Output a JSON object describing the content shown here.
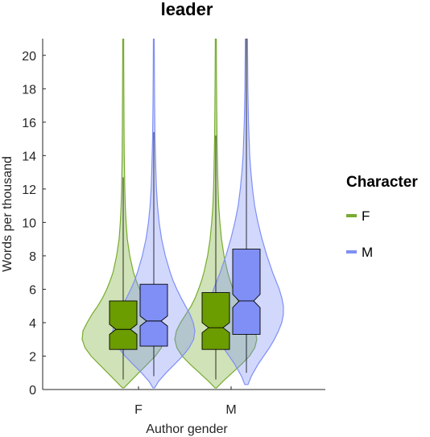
{
  "chart_data": {
    "type": "violin",
    "title": "leader",
    "xlabel": "Author gender",
    "ylabel": "Words per thousand",
    "categories": [
      "F",
      "M"
    ],
    "ylim": [
      0,
      21
    ],
    "yticks": [
      0,
      2,
      4,
      6,
      8,
      10,
      12,
      14,
      16,
      18,
      20
    ],
    "grid": false,
    "legend": {
      "title": "Character",
      "placement": "right",
      "entries": [
        {
          "label": "F",
          "color": "#77ac30"
        },
        {
          "label": "M",
          "color": "#7f8ff5"
        }
      ]
    },
    "series": [
      {
        "name": "F",
        "color": "#77ac30",
        "box_color": "#6b9c00",
        "groups": [
          {
            "category": "F",
            "q1": 2.4,
            "median": 3.6,
            "q3": 5.3,
            "notch_low": 3.3,
            "notch_high": 3.9,
            "whisker_low": 0.6,
            "whisker_high": 12.7,
            "violin": [
              [
                0.1,
                0.02
              ],
              [
                0.5,
                0.18
              ],
              [
                1.0,
                0.38
              ],
              [
                1.5,
                0.58
              ],
              [
                2.0,
                0.78
              ],
              [
                2.5,
                0.93
              ],
              [
                3.0,
                1.0
              ],
              [
                3.5,
                0.98
              ],
              [
                4.0,
                0.88
              ],
              [
                4.5,
                0.76
              ],
              [
                5.0,
                0.62
              ],
              [
                5.5,
                0.5
              ],
              [
                6.0,
                0.4
              ],
              [
                6.5,
                0.32
              ],
              [
                7.0,
                0.25
              ],
              [
                8.0,
                0.16
              ],
              [
                9.0,
                0.1
              ],
              [
                10.0,
                0.07
              ],
              [
                11.0,
                0.05
              ],
              [
                12.0,
                0.04
              ],
              [
                14.0,
                0.025
              ],
              [
                16.0,
                0.02
              ],
              [
                18.0,
                0.015
              ],
              [
                20.0,
                0.012
              ],
              [
                21.0,
                0.012
              ]
            ]
          },
          {
            "category": "M",
            "q1": 2.4,
            "median": 3.7,
            "q3": 5.8,
            "notch_low": 3.4,
            "notch_high": 4.0,
            "whisker_low": 0.6,
            "whisker_high": 15.2,
            "violin": [
              [
                0.1,
                0.02
              ],
              [
                0.5,
                0.18
              ],
              [
                1.0,
                0.4
              ],
              [
                1.5,
                0.62
              ],
              [
                2.0,
                0.82
              ],
              [
                2.5,
                0.95
              ],
              [
                3.0,
                1.0
              ],
              [
                3.5,
                0.96
              ],
              [
                4.0,
                0.86
              ],
              [
                4.5,
                0.73
              ],
              [
                5.0,
                0.6
              ],
              [
                5.5,
                0.5
              ],
              [
                6.0,
                0.42
              ],
              [
                6.5,
                0.35
              ],
              [
                7.0,
                0.29
              ],
              [
                8.0,
                0.2
              ],
              [
                9.0,
                0.14
              ],
              [
                10.0,
                0.1
              ],
              [
                11.0,
                0.07
              ],
              [
                12.0,
                0.055
              ],
              [
                13.0,
                0.045
              ],
              [
                15.0,
                0.03
              ],
              [
                17.0,
                0.022
              ],
              [
                19.0,
                0.016
              ],
              [
                21.0,
                0.012
              ]
            ]
          }
        ]
      },
      {
        "name": "M",
        "color": "#7f8ff5",
        "box_color": "#7f8ff5",
        "groups": [
          {
            "category": "F",
            "q1": 2.6,
            "median": 4.1,
            "q3": 6.3,
            "notch_low": 3.8,
            "notch_high": 4.4,
            "whisker_low": 0.8,
            "whisker_high": 15.4,
            "violin": [
              [
                0.1,
                0.02
              ],
              [
                0.5,
                0.12
              ],
              [
                1.0,
                0.3
              ],
              [
                1.5,
                0.5
              ],
              [
                2.0,
                0.7
              ],
              [
                2.5,
                0.86
              ],
              [
                3.0,
                0.97
              ],
              [
                3.5,
                1.0
              ],
              [
                4.0,
                0.96
              ],
              [
                4.5,
                0.88
              ],
              [
                5.0,
                0.77
              ],
              [
                5.5,
                0.66
              ],
              [
                6.0,
                0.56
              ],
              [
                6.5,
                0.47
              ],
              [
                7.0,
                0.4
              ],
              [
                8.0,
                0.28
              ],
              [
                9.0,
                0.19
              ],
              [
                10.0,
                0.13
              ],
              [
                11.0,
                0.09
              ],
              [
                12.0,
                0.065
              ],
              [
                13.0,
                0.05
              ],
              [
                15.0,
                0.03
              ],
              [
                17.0,
                0.02
              ],
              [
                19.0,
                0.014
              ],
              [
                21.0,
                0.01
              ]
            ]
          },
          {
            "category": "M",
            "q1": 3.3,
            "median": 5.3,
            "q3": 8.4,
            "notch_low": 4.9,
            "notch_high": 5.7,
            "whisker_low": 1.0,
            "whisker_high": 21.0,
            "violin": [
              [
                0.3,
                0.04
              ],
              [
                0.8,
                0.12
              ],
              [
                1.5,
                0.28
              ],
              [
                2.0,
                0.42
              ],
              [
                2.5,
                0.56
              ],
              [
                3.0,
                0.68
              ],
              [
                3.5,
                0.78
              ],
              [
                4.0,
                0.86
              ],
              [
                4.5,
                0.9
              ],
              [
                5.0,
                0.9
              ],
              [
                5.5,
                0.86
              ],
              [
                6.0,
                0.8
              ],
              [
                6.5,
                0.72
              ],
              [
                7.0,
                0.64
              ],
              [
                7.5,
                0.57
              ],
              [
                8.0,
                0.5
              ],
              [
                9.0,
                0.38
              ],
              [
                10.0,
                0.28
              ],
              [
                11.0,
                0.2
              ],
              [
                12.0,
                0.15
              ],
              [
                13.0,
                0.11
              ],
              [
                14.0,
                0.08
              ],
              [
                16.0,
                0.05
              ],
              [
                18.0,
                0.035
              ],
              [
                21.0,
                0.025
              ]
            ]
          }
        ]
      }
    ]
  }
}
